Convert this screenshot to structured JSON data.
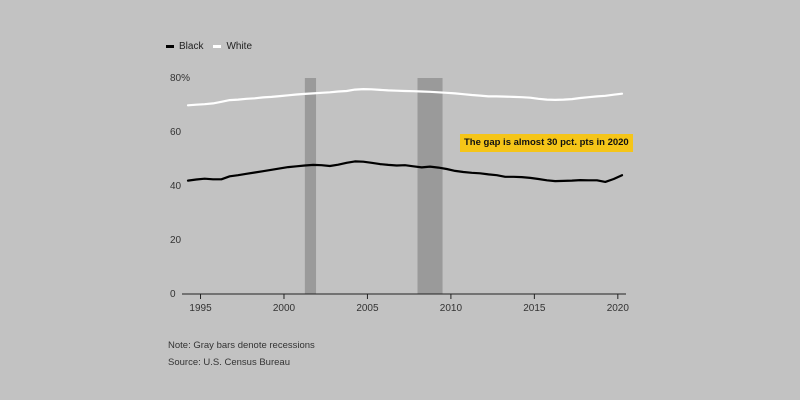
{
  "legend": [
    {
      "name": "Black",
      "color": "#000000"
    },
    {
      "name": "White",
      "color": "#ffffff"
    }
  ],
  "annotation": "The gap is almost 30 pct. pts in 2020",
  "note": "Note: Gray bars denote recessions",
  "source": "Source: U.S. Census Bureau",
  "chart_data": {
    "type": "line",
    "title": "",
    "xlabel": "",
    "ylabel": "",
    "xlim": [
      1994.25,
      2020.25
    ],
    "ylim": [
      0,
      80
    ],
    "x_ticks": [
      1995,
      2000,
      2005,
      2010,
      2015,
      2020
    ],
    "y_ticks": [
      0,
      20,
      40,
      60,
      80
    ],
    "y_tick_labels": [
      "0",
      "20",
      "40",
      "60",
      "80%"
    ],
    "recessions": [
      [
        2001.25,
        2001.92
      ],
      [
        2008.0,
        2009.5
      ]
    ],
    "series": [
      {
        "name": "White",
        "color": "#ffffff",
        "x": [
          1994.25,
          1994.75,
          1995.25,
          1995.75,
          1996.25,
          1996.75,
          1997.25,
          1997.75,
          1998.25,
          1998.75,
          1999.25,
          1999.75,
          2000.25,
          2000.75,
          2001.25,
          2001.75,
          2002.25,
          2002.75,
          2003.25,
          2003.75,
          2004.25,
          2004.75,
          2005.25,
          2005.75,
          2006.25,
          2006.75,
          2007.25,
          2007.75,
          2008.25,
          2008.75,
          2009.25,
          2009.75,
          2010.25,
          2010.75,
          2011.25,
          2011.75,
          2012.25,
          2012.75,
          2013.25,
          2013.75,
          2014.25,
          2014.75,
          2015.25,
          2015.75,
          2016.25,
          2016.75,
          2017.25,
          2017.75,
          2018.25,
          2018.75,
          2019.25,
          2019.75,
          2020.25
        ],
        "values": [
          69.9,
          70.1,
          70.3,
          70.6,
          71.2,
          71.8,
          72.0,
          72.3,
          72.5,
          72.8,
          73.0,
          73.3,
          73.6,
          73.9,
          74.1,
          74.3,
          74.5,
          74.7,
          75.0,
          75.2,
          75.7,
          75.9,
          75.8,
          75.6,
          75.4,
          75.3,
          75.2,
          75.1,
          75.0,
          74.9,
          74.7,
          74.5,
          74.3,
          74.0,
          73.7,
          73.5,
          73.2,
          73.2,
          73.1,
          73.0,
          72.9,
          72.7,
          72.3,
          72.0,
          71.9,
          72.0,
          72.2,
          72.6,
          72.9,
          73.2,
          73.4,
          73.8,
          74.2
        ]
      },
      {
        "name": "Black",
        "color": "#000000",
        "x": [
          1994.25,
          1994.75,
          1995.25,
          1995.75,
          1996.25,
          1996.75,
          1997.25,
          1997.75,
          1998.25,
          1998.75,
          1999.25,
          1999.75,
          2000.25,
          2000.75,
          2001.25,
          2001.75,
          2002.25,
          2002.75,
          2003.25,
          2003.75,
          2004.25,
          2004.75,
          2005.25,
          2005.75,
          2006.25,
          2006.75,
          2007.25,
          2007.75,
          2008.25,
          2008.75,
          2009.25,
          2009.75,
          2010.25,
          2010.75,
          2011.25,
          2011.75,
          2012.25,
          2012.75,
          2013.25,
          2013.75,
          2014.25,
          2014.75,
          2015.25,
          2015.75,
          2016.25,
          2016.75,
          2017.25,
          2017.75,
          2018.25,
          2018.75,
          2019.25,
          2019.75,
          2020.25
        ],
        "values": [
          42.0,
          42.4,
          42.7,
          42.5,
          42.5,
          43.6,
          44.0,
          44.5,
          45.0,
          45.5,
          46.0,
          46.5,
          47.0,
          47.3,
          47.6,
          47.8,
          47.7,
          47.4,
          47.9,
          48.6,
          49.1,
          49.0,
          48.6,
          48.1,
          47.8,
          47.6,
          47.7,
          47.3,
          46.9,
          47.2,
          46.8,
          46.3,
          45.6,
          45.2,
          44.9,
          44.7,
          44.3,
          44.0,
          43.4,
          43.4,
          43.3,
          43.0,
          42.6,
          42.1,
          41.8,
          41.9,
          42.0,
          42.2,
          42.1,
          42.1,
          41.5,
          42.6,
          44.0
        ]
      }
    ]
  }
}
